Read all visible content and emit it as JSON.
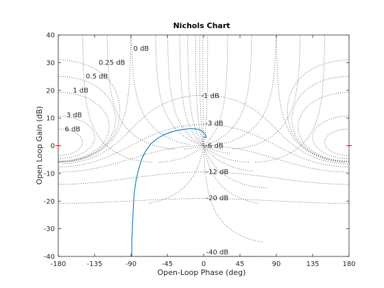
{
  "chart_data": {
    "type": "line",
    "title": "Nichols Chart",
    "xlabel": "Open-Loop Phase (deg)",
    "ylabel": "Open Loop Gain (dB)",
    "xlim": [
      -180,
      180
    ],
    "ylim": [
      -40,
      40
    ],
    "xticks": [
      -180,
      -135,
      -90,
      -45,
      0,
      45,
      90,
      135,
      180
    ],
    "yticks": [
      -40,
      -30,
      -20,
      -10,
      0,
      10,
      20,
      30,
      40
    ],
    "grid": true,
    "grid_labels": [
      {
        "text": "0 dB",
        "phase": -87,
        "gain": 35
      },
      {
        "text": "0.25 dB",
        "phase": -130,
        "gain": 30
      },
      {
        "text": "0.5 dB",
        "phase": -146,
        "gain": 25
      },
      {
        "text": "1 dB",
        "phase": -162,
        "gain": 20
      },
      {
        "text": "-1 dB",
        "phase": -3,
        "gain": 18
      },
      {
        "text": "3 dB",
        "phase": -170,
        "gain": 11
      },
      {
        "text": "6 dB",
        "phase": -172,
        "gain": 6
      },
      {
        "text": "-3 dB",
        "phase": 2,
        "gain": 8
      },
      {
        "text": "-6 dB",
        "phase": 2,
        "gain": 0
      },
      {
        "text": "-12 dB",
        "phase": 3,
        "gain": -9.5
      },
      {
        "text": "-20 dB",
        "phase": 3,
        "gain": -19
      },
      {
        "text": "-40 dB",
        "phase": 3,
        "gain": -38.5
      }
    ],
    "critical_points": [
      {
        "phase": -180,
        "gain": 0
      },
      {
        "phase": 180,
        "gain": 0
      }
    ],
    "series": [
      {
        "color": "#0072BD",
        "phase": [
          -89,
          -89,
          -88,
          -87,
          -86,
          -84,
          -81,
          -77,
          -72,
          -66,
          -58,
          -49,
          -40,
          -31,
          -23,
          -16,
          -10,
          -5,
          -2,
          0,
          2,
          3,
          3,
          2,
          1,
          0
        ],
        "gain": [
          -40,
          -34,
          -28,
          -22,
          -17,
          -13,
          -9,
          -5,
          -2,
          0.5,
          2.5,
          4,
          5,
          5.6,
          6,
          6.2,
          6.1,
          5.8,
          5.3,
          4.7,
          4,
          3.4,
          3,
          2.9,
          3.1,
          3.4
        ]
      }
    ]
  }
}
